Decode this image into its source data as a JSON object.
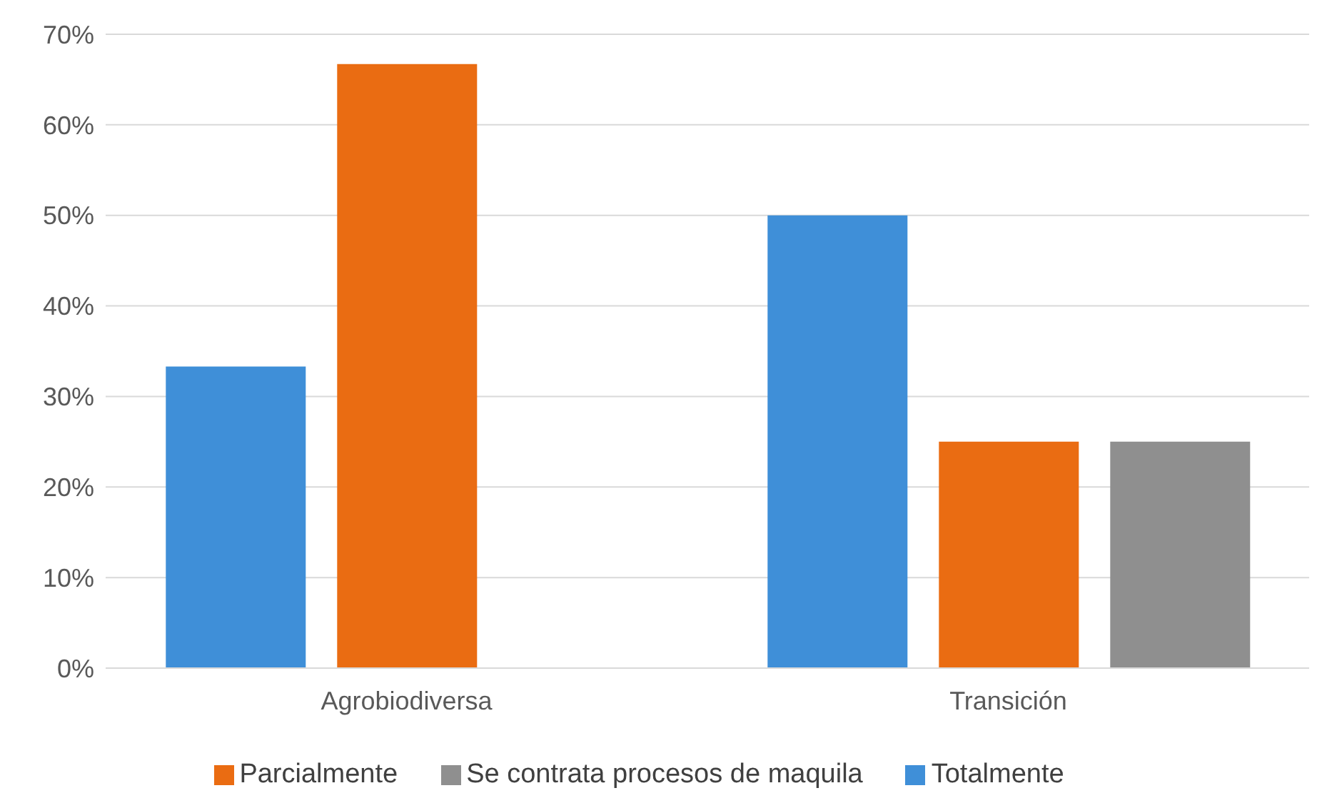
{
  "chart_data": {
    "type": "bar",
    "categories": [
      "Agrobiodiversa",
      "Transición"
    ],
    "series": [
      {
        "name": "Totalmente",
        "color": "#3f8fd8",
        "values": [
          33.3,
          50
        ]
      },
      {
        "name": "Parcialmente",
        "color": "#ea6c12",
        "values": [
          66.7,
          25
        ]
      },
      {
        "name": "Se contrata procesos de maquila",
        "color": "#8f8f8f",
        "values": [
          null,
          25
        ]
      }
    ],
    "ylim": [
      0,
      70
    ],
    "yticks": [
      {
        "value": 0,
        "label": "0%"
      },
      {
        "value": 10,
        "label": "10%"
      },
      {
        "value": 20,
        "label": "20%"
      },
      {
        "value": 30,
        "label": "30%"
      },
      {
        "value": 40,
        "label": "40%"
      },
      {
        "value": 50,
        "label": "50%"
      },
      {
        "value": 60,
        "label": "60%"
      },
      {
        "value": 70,
        "label": "70%"
      }
    ],
    "grid": "y",
    "legend": "bottom"
  }
}
